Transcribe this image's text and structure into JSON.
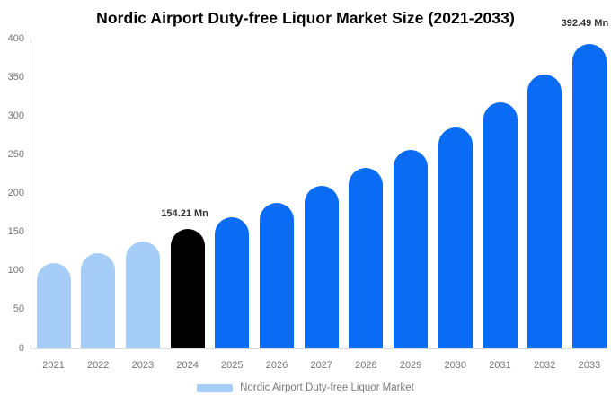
{
  "title": "Nordic Airport Duty-free Liquor Market Size (2021-2033)",
  "legend": {
    "label": "Nordic Airport Duty-free Liquor Market"
  },
  "colors": {
    "light_blue": "#a6cdf8",
    "blue": "#0a6cf5",
    "black": "#000000",
    "axis_line": "#dcdcdc",
    "tick_text": "#757575",
    "data_label_text": "#333333",
    "legend_text": "#7a7a7a",
    "title_text": "#000000",
    "background": "#ffffff"
  },
  "y_axis": {
    "min": 0,
    "max": 400,
    "ticks": [
      400,
      350,
      300,
      250,
      200,
      150,
      100,
      50,
      0
    ]
  },
  "chart_data": {
    "type": "bar",
    "title": "Nordic Airport Duty-free Liquor Market Size (2021-2033)",
    "series_name": "Nordic Airport Duty-free Liquor Market",
    "categories": [
      "2021",
      "2022",
      "2023",
      "2024",
      "2025",
      "2026",
      "2027",
      "2028",
      "2029",
      "2030",
      "2031",
      "2032",
      "2033"
    ],
    "values": [
      110,
      123,
      137.5,
      154.21,
      169,
      187.5,
      209.5,
      232.5,
      256,
      285.5,
      317.5,
      353.5,
      392.49
    ],
    "xlabel": "",
    "ylabel": "",
    "ylim": [
      0,
      400
    ],
    "yticks": [
      0,
      50,
      100,
      150,
      200,
      250,
      300,
      350,
      400
    ],
    "grid": false,
    "legend_position": "bottom",
    "data_labels": [
      {
        "category": "2024",
        "text": "154.21 Mn"
      },
      {
        "category": "2033",
        "text": "392.49 Mn"
      }
    ],
    "bar_color_groups": [
      {
        "categories": [
          "2021",
          "2022",
          "2023"
        ],
        "color": "#a6cdf8"
      },
      {
        "categories": [
          "2024"
        ],
        "color": "#000000"
      },
      {
        "categories": [
          "2025",
          "2026",
          "2027",
          "2028",
          "2029",
          "2030",
          "2031",
          "2032",
          "2033"
        ],
        "color": "#0a6cf5"
      }
    ]
  }
}
